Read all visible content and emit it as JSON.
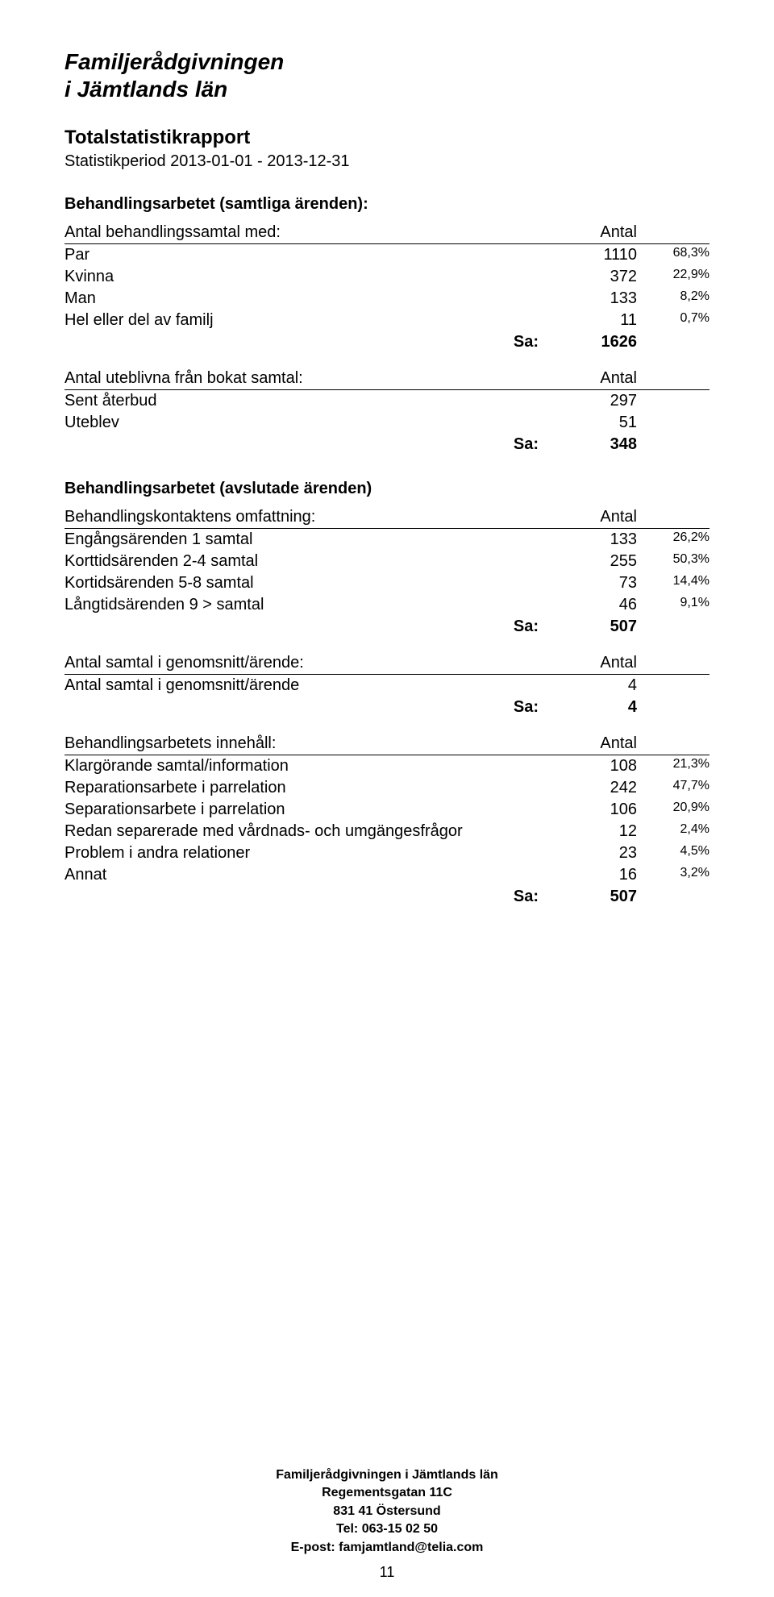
{
  "org": {
    "line1": "Familjerådgivningen",
    "line2": "i Jämtlands län"
  },
  "report": {
    "title": "Totalstatistikrapport",
    "period": "Statistikperiod 2013-01-01 - 2013-12-31"
  },
  "col_header": "Antal",
  "sa_label": "Sa:",
  "sections": {
    "behandlings_samtliga": {
      "heading": "Behandlingsarbetet (samtliga ärenden):",
      "sub_behandlingssamtal": {
        "label": "Antal behandlingssamtal med:",
        "rows": [
          {
            "label": "Par",
            "value": "1110",
            "pct": "68,3%"
          },
          {
            "label": "Kvinna",
            "value": "372",
            "pct": "22,9%"
          },
          {
            "label": "Man",
            "value": "133",
            "pct": "8,2%"
          },
          {
            "label": "Hel eller del av familj",
            "value": "11",
            "pct": "0,7%"
          }
        ],
        "sum": "1626"
      },
      "sub_uteblivna": {
        "label": "Antal uteblivna från bokat samtal:",
        "rows": [
          {
            "label": "Sent återbud",
            "value": "297",
            "pct": ""
          },
          {
            "label": "Uteblev",
            "value": "51",
            "pct": ""
          }
        ],
        "sum": "348"
      }
    },
    "behandlings_avslutade": {
      "heading": "Behandlingsarbetet (avslutade ärenden)",
      "sub_omfattning": {
        "label": "Behandlingskontaktens omfattning:",
        "rows": [
          {
            "label": "Engångsärenden 1 samtal",
            "value": "133",
            "pct": "26,2%"
          },
          {
            "label": "Korttidsärenden 2-4 samtal",
            "value": "255",
            "pct": "50,3%"
          },
          {
            "label": "Kortidsärenden 5-8 samtal",
            "value": "73",
            "pct": "14,4%"
          },
          {
            "label": "Långtidsärenden 9 > samtal",
            "value": "46",
            "pct": "9,1%"
          }
        ],
        "sum": "507"
      },
      "sub_genomsnitt": {
        "label": "Antal samtal i genomsnitt/ärende:",
        "rows": [
          {
            "label": "Antal samtal i genomsnitt/ärende",
            "value": "4",
            "pct": ""
          }
        ],
        "sum": "4"
      },
      "sub_innehall": {
        "label": "Behandlingsarbetets innehåll:",
        "rows": [
          {
            "label": "Klargörande samtal/information",
            "value": "108",
            "pct": "21,3%"
          },
          {
            "label": "Reparationsarbete i parrelation",
            "value": "242",
            "pct": "47,7%"
          },
          {
            "label": "Separationsarbete i parrelation",
            "value": "106",
            "pct": "20,9%"
          },
          {
            "label": "Redan separerade med vårdnads- och umgängesfrågor",
            "value": "12",
            "pct": "2,4%"
          },
          {
            "label": "Problem i andra relationer",
            "value": "23",
            "pct": "4,5%"
          },
          {
            "label": "Annat",
            "value": "16",
            "pct": "3,2%"
          }
        ],
        "sum": "507"
      }
    }
  },
  "footer": {
    "name": "Familjerådgivningen i Jämtlands län",
    "addr1": "Regementsgatan 11C",
    "addr2": "831 41 Östersund",
    "tel": "Tel: 063-15 02 50",
    "email": "E-post: famjamtland@telia.com"
  },
  "page_number": "11"
}
